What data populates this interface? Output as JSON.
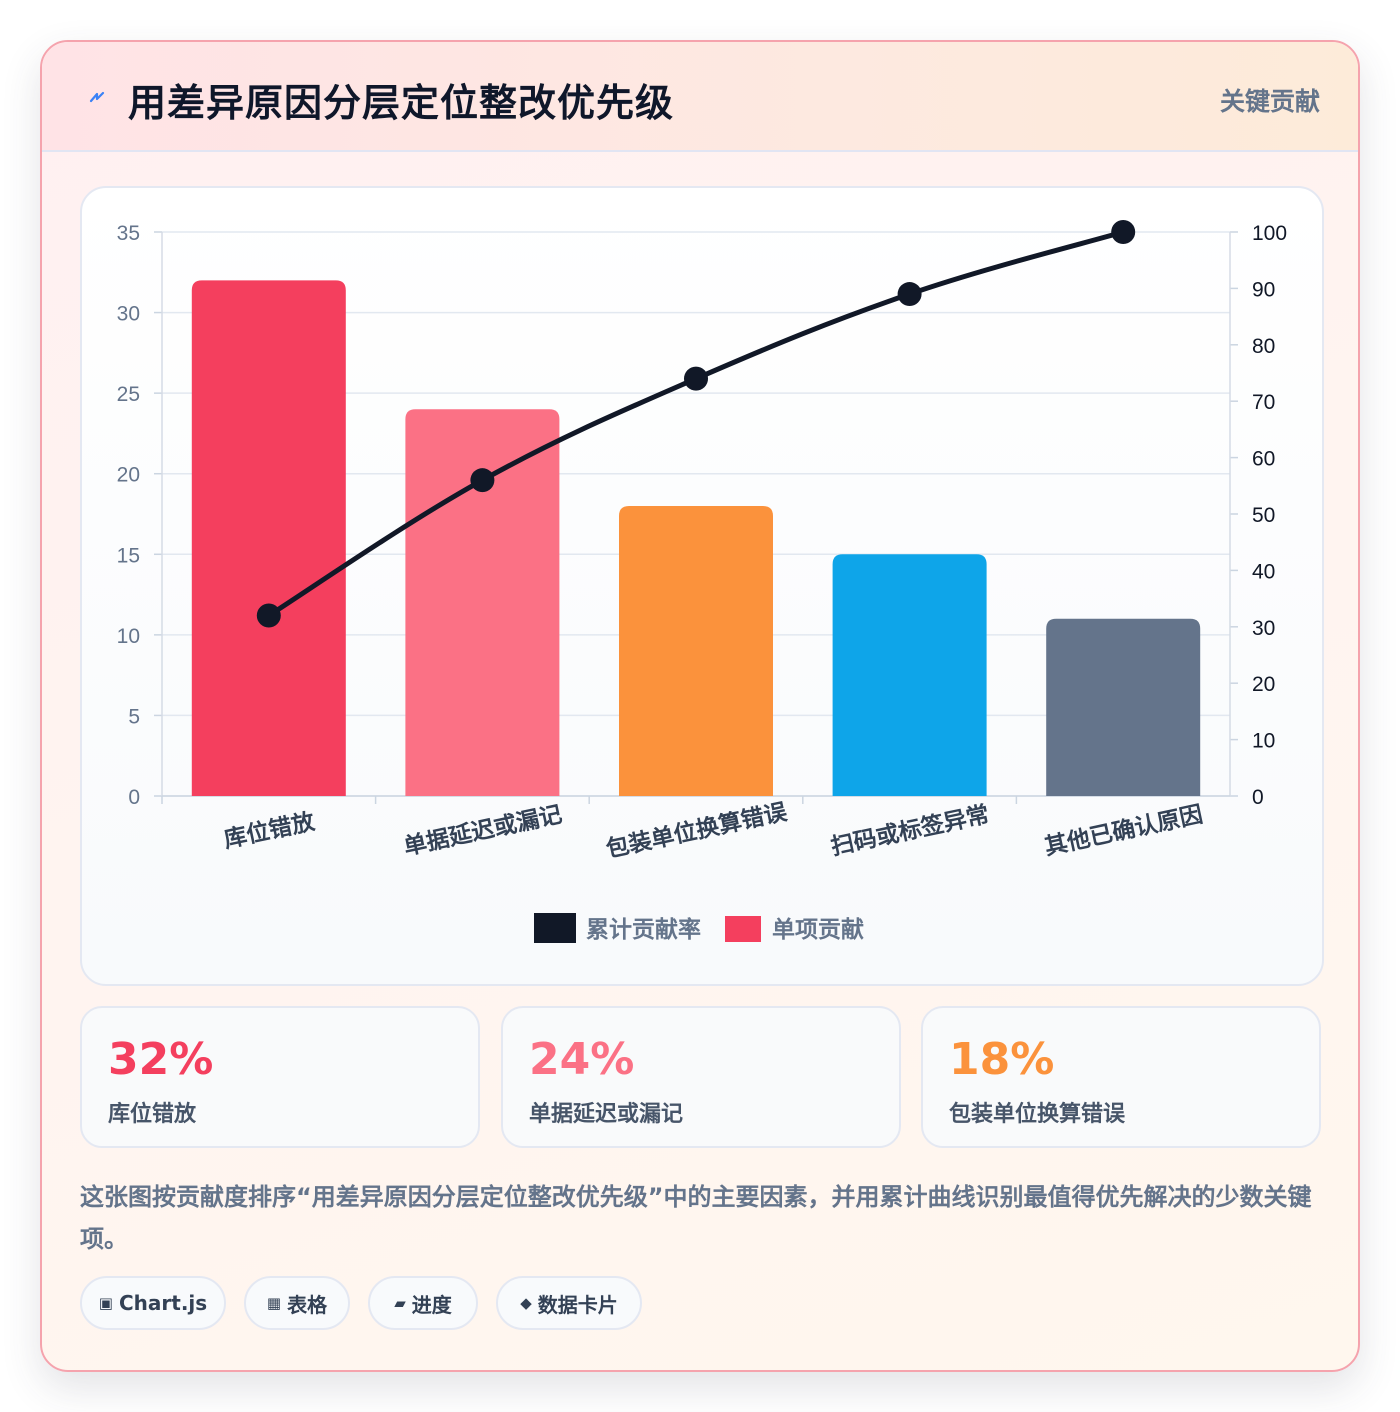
{
  "header": {
    "title": "用差异原因分层定位整改优先级",
    "badge": "关键贡献",
    "icon": "lightning-icon"
  },
  "chart_data": {
    "type": "bar",
    "categories": [
      "库位错放",
      "单据延迟或漏记",
      "包装单位换算错误",
      "扫码或标签异常",
      "其他已确认原因"
    ],
    "series": [
      {
        "name": "累计贡献率",
        "type": "line",
        "axis": "right",
        "values": [
          32,
          56,
          74,
          89,
          100
        ],
        "color": "#111827"
      },
      {
        "name": "单项贡献",
        "type": "bar",
        "axis": "left",
        "values": [
          32,
          24,
          18,
          15,
          11
        ],
        "colors": [
          "#f43f5e",
          "#fb7185",
          "#fb923c",
          "#0ea5e9",
          "#64748b"
        ]
      }
    ],
    "y_left": {
      "range": [
        0,
        35
      ],
      "ticks": [
        "0",
        "5",
        "10",
        "15",
        "20",
        "25",
        "30",
        "35"
      ]
    },
    "y_right": {
      "range": [
        0,
        100
      ],
      "ticks": [
        "0",
        "10",
        "20",
        "30",
        "40",
        "50",
        "60",
        "70",
        "80",
        "90",
        "100"
      ]
    },
    "grid": true,
    "legend": "bottom"
  },
  "stats": [
    {
      "value": "32%",
      "label": "库位错放",
      "color": "#f43f5e"
    },
    {
      "value": "24%",
      "label": "单据延迟或漏记",
      "color": "#fb7185"
    },
    {
      "value": "18%",
      "label": "包装单位换算错误",
      "color": "#fb923c"
    }
  ],
  "description": "这张图按贡献度排序“用差异原因分层定位整改优先级”中的主要因素，并用累计曲线识别最值得优先解决的少数关键项。",
  "chips": [
    {
      "icon": "▣",
      "label": "Chart.js"
    },
    {
      "icon": "▦",
      "label": "表格"
    },
    {
      "icon": "▰",
      "label": "进度"
    },
    {
      "icon": "◆",
      "label": "数据卡片"
    }
  ]
}
